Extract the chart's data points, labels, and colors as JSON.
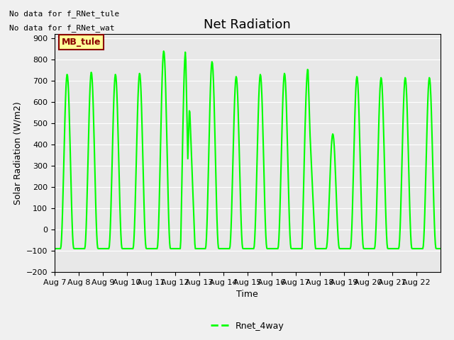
{
  "title": "Net Radiation",
  "ylabel": "Solar Radiation (W/m2)",
  "xlabel": "Time",
  "ylim": [
    -200,
    920
  ],
  "yticks": [
    -200,
    -100,
    0,
    100,
    200,
    300,
    400,
    500,
    600,
    700,
    800,
    900
  ],
  "line_color": "#00FF00",
  "line_width": 1.5,
  "bg_color": "#E8E8E8",
  "fig_bg_color": "#F0F0F0",
  "legend_label": "Rnet_4way",
  "annotation_text1": "No data for f_RNet_tule",
  "annotation_text2": "No data for f_RNet_wat",
  "box_label": "MB_tule",
  "box_facecolor": "#FFFF99",
  "box_edgecolor": "#8B0000",
  "box_textcolor": "#8B0000",
  "num_days": 16,
  "start_day": 7,
  "trough_value": -90,
  "title_fontsize": 13,
  "axis_fontsize": 9,
  "tick_fontsize": 8,
  "date_labels": [
    "Aug 7",
    "Aug 8",
    "Aug 9",
    "Aug 10",
    "Aug 11",
    "Aug 12",
    "Aug 13",
    "Aug 14",
    "Aug 15",
    "Aug 16",
    "Aug 17",
    "Aug 18",
    "Aug 19",
    "Aug 20",
    "Aug 21",
    "Aug 22"
  ],
  "date_positions": [
    0,
    1,
    2,
    3,
    4,
    5,
    6,
    7,
    8,
    9,
    10,
    11,
    12,
    13,
    14,
    15
  ],
  "day_peaks": [
    730,
    740,
    730,
    735,
    840,
    590,
    790,
    720,
    730,
    735,
    760,
    450,
    720,
    715,
    715,
    715
  ]
}
